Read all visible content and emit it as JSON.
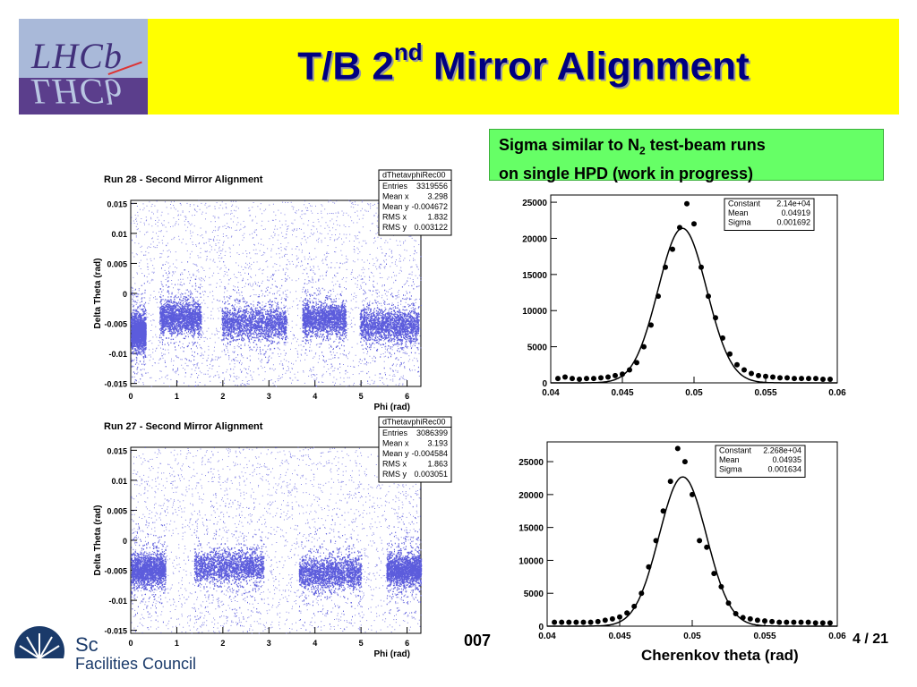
{
  "header": {
    "logo_text": "LHCb",
    "title_main": "T/B 2",
    "title_sup": "nd",
    "title_rest": " Mirror Alignment"
  },
  "note": {
    "line1_pre": "Sigma similar to N",
    "line1_sub": "2",
    "line1_post": " test-beam runs",
    "line2": "on single HPD (work in progress)"
  },
  "footer": {
    "org_line1": "Sc",
    "org_line2": "Facilities Council",
    "date_fragment": "007",
    "page": "4 / 21",
    "x_title": "Cherenkov theta (rad)"
  },
  "colors": {
    "scatter": "#5c5cdc",
    "titlebar": "#ffff00",
    "title": "#000080",
    "note_bg": "#66ff66"
  },
  "chart_data": [
    {
      "type": "scatter",
      "title": "Run 28 - Second Mirror Alignment",
      "xlabel": "Phi (rad)",
      "ylabel": "Delta Theta (rad)",
      "xlim": [
        0,
        6.3
      ],
      "ylim": [
        -0.0155,
        0.0155
      ],
      "xticks": [
        "0",
        "1",
        "2",
        "3",
        "4",
        "5",
        "6"
      ],
      "yticks": [
        "-0.015",
        "-0.01",
        "-0.005",
        "0",
        "0.005",
        "0.01",
        "0.015"
      ],
      "stats": {
        "name": "dThetavphiRec00",
        "rows": [
          [
            "Entries",
            "3319556"
          ],
          [
            "Mean x",
            "3.298"
          ],
          [
            "Mean y",
            "-0.004672"
          ],
          [
            "RMS x",
            "1.832"
          ],
          [
            "RMS y",
            "0.003122"
          ]
        ]
      },
      "bands": [
        [
          0.0,
          0.32,
          -0.0065
        ],
        [
          0.62,
          1.52,
          -0.004
        ],
        [
          1.97,
          3.38,
          -0.005
        ],
        [
          3.72,
          4.67,
          -0.0042
        ],
        [
          4.97,
          6.25,
          -0.0053
        ]
      ]
    },
    {
      "type": "scatter",
      "title": "Run 27 - Second Mirror Alignment",
      "xlabel": "Phi (rad)",
      "ylabel": "Delta Theta (rad)",
      "xlim": [
        0,
        6.3
      ],
      "ylim": [
        -0.0155,
        0.0155
      ],
      "xticks": [
        "0",
        "1",
        "2",
        "3",
        "4",
        "5",
        "6"
      ],
      "yticks": [
        "-0.015",
        "-0.01",
        "-0.005",
        "0",
        "0.005",
        "0.01",
        "0.015"
      ],
      "stats": {
        "name": "dThetavphiRec00",
        "rows": [
          [
            "Entries",
            "3086399"
          ],
          [
            "Mean x",
            "3.193"
          ],
          [
            "Mean y",
            "-0.004584"
          ],
          [
            "RMS x",
            "1.863"
          ],
          [
            "RMS y",
            "0.003051"
          ]
        ]
      },
      "bands": [
        [
          0.0,
          0.75,
          -0.005
        ],
        [
          1.37,
          2.88,
          -0.0045
        ],
        [
          3.65,
          5.0,
          -0.0055
        ],
        [
          5.55,
          6.3,
          -0.005
        ]
      ]
    },
    {
      "type": "scatter",
      "xlim": [
        0.04,
        0.06
      ],
      "ylim": [
        0,
        26000
      ],
      "xticks": [
        "0.04",
        "0.045",
        "0.05",
        "0.055",
        "0.06"
      ],
      "yticks": [
        "0",
        "5000",
        "10000",
        "15000",
        "20000",
        "25000"
      ],
      "fit": {
        "constant": 21400,
        "mean": 0.04919,
        "sigma": 0.001692
      },
      "stats": {
        "rows": [
          [
            "Constant",
            "2.14e+04"
          ],
          [
            "Mean",
            "0.04919"
          ],
          [
            "Sigma",
            "0.001692"
          ]
        ]
      },
      "x": [
        0.0405,
        0.041,
        0.0415,
        0.042,
        0.0425,
        0.043,
        0.0435,
        0.044,
        0.0445,
        0.045,
        0.0455,
        0.046,
        0.0465,
        0.047,
        0.0475,
        0.048,
        0.0485,
        0.049,
        0.0495,
        0.05,
        0.0505,
        0.051,
        0.0515,
        0.052,
        0.0525,
        0.053,
        0.0535,
        0.054,
        0.0545,
        0.055,
        0.0555,
        0.056,
        0.0565,
        0.057,
        0.0575,
        0.058,
        0.0585,
        0.059,
        0.0595
      ],
      "y": [
        600,
        800,
        600,
        500,
        600,
        600,
        700,
        800,
        1000,
        1200,
        1800,
        2800,
        5000,
        8000,
        12000,
        16000,
        18500,
        21500,
        24800,
        22000,
        16000,
        12000,
        9000,
        6200,
        4000,
        2500,
        1800,
        1300,
        1000,
        900,
        800,
        700,
        700,
        600,
        600,
        600,
        600,
        500,
        500
      ]
    },
    {
      "type": "scatter",
      "xlim": [
        0.04,
        0.06
      ],
      "ylim": [
        0,
        28000
      ],
      "xticks": [
        "0.04",
        "0.045",
        "0.05",
        "0.055",
        "0.06"
      ],
      "yticks": [
        "0",
        "5000",
        "10000",
        "15000",
        "20000",
        "25000"
      ],
      "fit": {
        "constant": 22680,
        "mean": 0.04935,
        "sigma": 0.001634
      },
      "stats": {
        "rows": [
          [
            "Constant",
            "2.268e+04"
          ],
          [
            "Mean",
            "0.04935"
          ],
          [
            "Sigma",
            "0.001634"
          ]
        ]
      },
      "x": [
        0.0405,
        0.041,
        0.0415,
        0.042,
        0.0425,
        0.043,
        0.0435,
        0.044,
        0.0445,
        0.045,
        0.0455,
        0.046,
        0.0465,
        0.047,
        0.0475,
        0.048,
        0.0485,
        0.049,
        0.0495,
        0.05,
        0.0505,
        0.051,
        0.0515,
        0.052,
        0.0525,
        0.053,
        0.0535,
        0.054,
        0.0545,
        0.055,
        0.0555,
        0.056,
        0.0565,
        0.057,
        0.0575,
        0.058,
        0.0585,
        0.059,
        0.0595
      ],
      "y": [
        600,
        600,
        600,
        600,
        600,
        600,
        700,
        900,
        1100,
        1400,
        2000,
        3000,
        5000,
        9000,
        13000,
        17500,
        22000,
        27000,
        25000,
        20000,
        13000,
        12000,
        8000,
        6000,
        3500,
        1900,
        1300,
        1100,
        900,
        800,
        700,
        600,
        600,
        600,
        600,
        600,
        500,
        500,
        500
      ]
    }
  ]
}
